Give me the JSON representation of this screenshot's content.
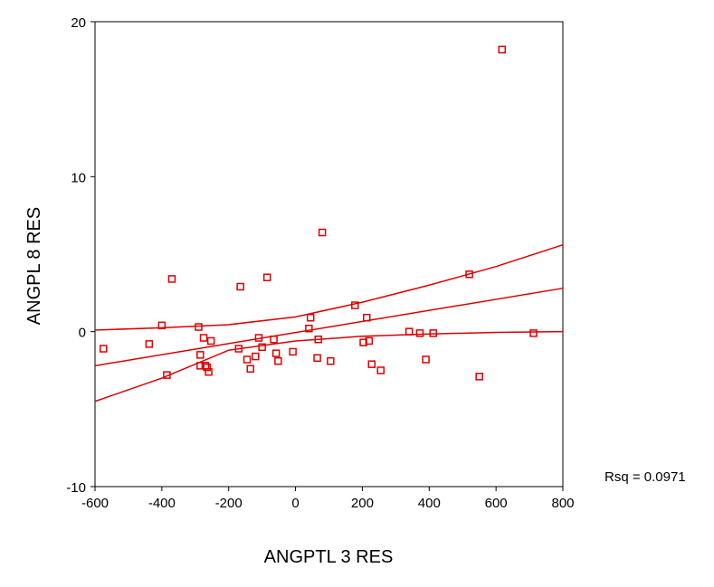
{
  "chart_data": {
    "type": "scatter",
    "xlabel": "ANGPTL 3   RES",
    "ylabel": "ANGPL 8  RES",
    "xlim": [
      -600,
      800
    ],
    "ylim": [
      -10,
      20
    ],
    "x_ticks": [
      -600,
      -400,
      -200,
      0,
      200,
      400,
      600,
      800
    ],
    "y_ticks": [
      -10,
      0,
      10,
      20
    ],
    "x_tick_labels": [
      "-600",
      "-400",
      "-200",
      "0",
      "200",
      "400",
      "600",
      "800"
    ],
    "y_tick_labels": [
      "-10",
      "0",
      "10",
      "20"
    ],
    "grid": false,
    "annotation": "Rsq = 0.0971",
    "colors": {
      "marks": "#dd0000",
      "axes": "#000000",
      "background": "#ffffff"
    },
    "points": [
      {
        "x": -575,
        "y": -1.1
      },
      {
        "x": -438,
        "y": -0.8
      },
      {
        "x": -400,
        "y": 0.4
      },
      {
        "x": -385,
        "y": -2.8
      },
      {
        "x": -370,
        "y": 3.4
      },
      {
        "x": -290,
        "y": 0.3
      },
      {
        "x": -285,
        "y": -1.5
      },
      {
        "x": -285,
        "y": -2.2
      },
      {
        "x": -275,
        "y": -0.4
      },
      {
        "x": -270,
        "y": -2.2
      },
      {
        "x": -265,
        "y": -2.3
      },
      {
        "x": -260,
        "y": -2.6
      },
      {
        "x": -253,
        "y": -0.6
      },
      {
        "x": -170,
        "y": -1.1
      },
      {
        "x": -165,
        "y": 2.9
      },
      {
        "x": -145,
        "y": -1.8
      },
      {
        "x": -135,
        "y": -2.4
      },
      {
        "x": -120,
        "y": -1.6
      },
      {
        "x": -110,
        "y": -0.4
      },
      {
        "x": -100,
        "y": -1.0
      },
      {
        "x": -85,
        "y": 3.5
      },
      {
        "x": -65,
        "y": -0.5
      },
      {
        "x": -58,
        "y": -1.4
      },
      {
        "x": -52,
        "y": -1.9
      },
      {
        "x": -8,
        "y": -1.3
      },
      {
        "x": 40,
        "y": 0.2
      },
      {
        "x": 45,
        "y": 0.9
      },
      {
        "x": 65,
        "y": -1.7
      },
      {
        "x": 68,
        "y": -0.5
      },
      {
        "x": 80,
        "y": 6.4
      },
      {
        "x": 105,
        "y": -1.9
      },
      {
        "x": 178,
        "y": 1.7
      },
      {
        "x": 203,
        "y": -0.7
      },
      {
        "x": 213,
        "y": 0.9
      },
      {
        "x": 220,
        "y": -0.6
      },
      {
        "x": 228,
        "y": -2.1
      },
      {
        "x": 255,
        "y": -2.5
      },
      {
        "x": 340,
        "y": 0.0
      },
      {
        "x": 372,
        "y": -0.1
      },
      {
        "x": 390,
        "y": -1.8
      },
      {
        "x": 412,
        "y": -0.1
      },
      {
        "x": 520,
        "y": 3.7
      },
      {
        "x": 550,
        "y": -2.9
      },
      {
        "x": 618,
        "y": 18.2
      },
      {
        "x": 712,
        "y": -0.1
      }
    ],
    "fit_line": [
      [
        -600,
        -2.2
      ],
      [
        800,
        2.8
      ]
    ],
    "ci_upper": [
      [
        -600,
        0.1
      ],
      [
        -400,
        0.25
      ],
      [
        -200,
        0.45
      ],
      [
        0,
        0.95
      ],
      [
        200,
        1.9
      ],
      [
        400,
        3.0
      ],
      [
        600,
        4.2
      ],
      [
        800,
        5.6
      ]
    ],
    "ci_lower": [
      [
        -600,
        -4.5
      ],
      [
        -400,
        -3.0
      ],
      [
        -200,
        -1.2
      ],
      [
        0,
        -0.6
      ],
      [
        200,
        -0.3
      ],
      [
        400,
        -0.15
      ],
      [
        600,
        -0.05
      ],
      [
        800,
        0.0
      ]
    ]
  }
}
